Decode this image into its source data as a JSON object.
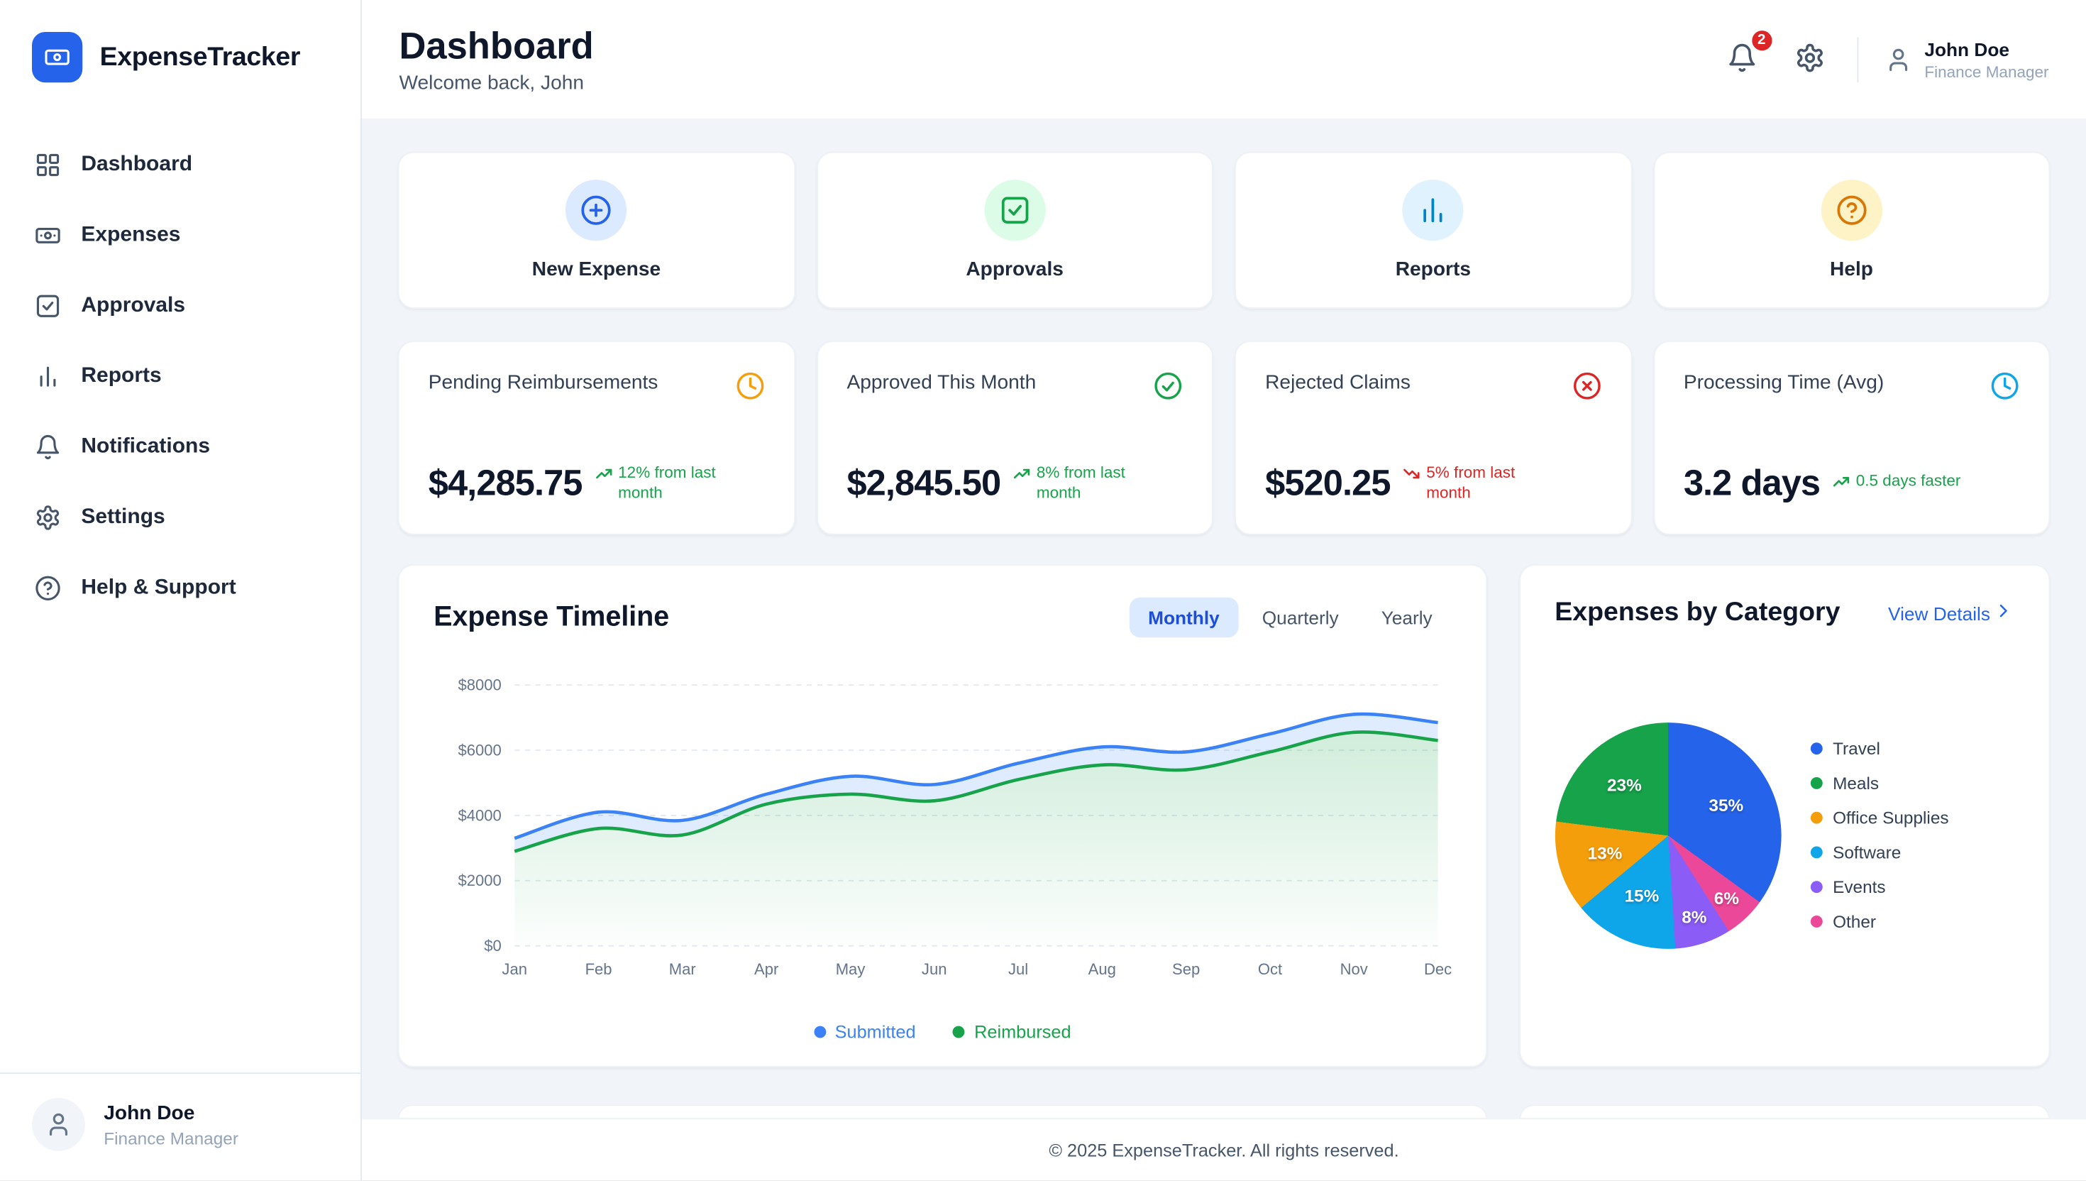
{
  "app": {
    "name": "ExpenseTracker",
    "copyright": "© 2025 ExpenseTracker. All rights reserved."
  },
  "sidebar": {
    "items": [
      {
        "label": "Dashboard",
        "icon": "grid-icon"
      },
      {
        "label": "Expenses",
        "icon": "banknote-icon"
      },
      {
        "label": "Approvals",
        "icon": "check-square-icon"
      },
      {
        "label": "Reports",
        "icon": "bar-chart-icon"
      },
      {
        "label": "Notifications",
        "icon": "bell-icon"
      },
      {
        "label": "Settings",
        "icon": "gear-icon"
      },
      {
        "label": "Help & Support",
        "icon": "help-circle-icon"
      }
    ],
    "user": {
      "name": "John Doe",
      "role": "Finance Manager"
    }
  },
  "header": {
    "title": "Dashboard",
    "subtitle": "Welcome back, John",
    "notification_badge": "2",
    "user": {
      "name": "John Doe",
      "role": "Finance Manager"
    }
  },
  "quick_actions": [
    {
      "label": "New Expense",
      "icon": "plus-circle-icon",
      "accent": "#2563eb"
    },
    {
      "label": "Approvals",
      "icon": "check-square-icon",
      "accent": "#16a34a"
    },
    {
      "label": "Reports",
      "icon": "bar-chart-icon",
      "accent": "#0284c7"
    },
    {
      "label": "Help",
      "icon": "help-circle-icon",
      "accent": "#d97706"
    }
  ],
  "stats": [
    {
      "title": "Pending Reimbursements",
      "value": "$4,285.75",
      "trend": "12% from last month",
      "direction": "up",
      "trend_color": "#16a34a",
      "icon": "clock-icon",
      "icon_color": "#f59e0b"
    },
    {
      "title": "Approved This Month",
      "value": "$2,845.50",
      "trend": "8% from last month",
      "direction": "up",
      "trend_color": "#16a34a",
      "icon": "check-circle-icon",
      "icon_color": "#16a34a"
    },
    {
      "title": "Rejected Claims",
      "value": "$520.25",
      "trend": "5% from last month",
      "direction": "down",
      "trend_color": "#dc2626",
      "icon": "x-circle-icon",
      "icon_color": "#dc2626"
    },
    {
      "title": "Processing Time (Avg)",
      "value": "3.2 days",
      "trend": "0.5 days faster",
      "direction": "up",
      "trend_color": "#16a34a",
      "icon": "clock-icon",
      "icon_color": "#0ea5e9"
    }
  ],
  "timeline_card": {
    "title": "Expense Timeline",
    "tabs": [
      {
        "label": "Monthly",
        "active": true
      },
      {
        "label": "Quarterly",
        "active": false
      },
      {
        "label": "Yearly",
        "active": false
      }
    ]
  },
  "category_card": {
    "title": "Expenses by Category",
    "link_label": "View Details"
  },
  "chart_data": [
    {
      "type": "area",
      "title": "Expense Timeline",
      "x": [
        "Jan",
        "Feb",
        "Mar",
        "Apr",
        "May",
        "Jun",
        "Jul",
        "Aug",
        "Sep",
        "Oct",
        "Nov",
        "Dec"
      ],
      "series": [
        {
          "name": "Submitted",
          "color": "#3b82f6",
          "values": [
            3300,
            4100,
            3850,
            4650,
            5200,
            4950,
            5600,
            6100,
            5950,
            6500,
            7100,
            6850
          ]
        },
        {
          "name": "Reimbursed",
          "color": "#16a34a",
          "values": [
            2900,
            3600,
            3400,
            4350,
            4650,
            4450,
            5100,
            5550,
            5400,
            5950,
            6550,
            6300
          ]
        }
      ],
      "ylim": [
        0,
        8000
      ],
      "yticks": [
        0,
        2000,
        4000,
        6000,
        8000
      ],
      "ytick_labels": [
        "$0",
        "$2000",
        "$4000",
        "$6000",
        "$8000"
      ],
      "grid": true,
      "legend_position": "bottom"
    },
    {
      "type": "pie",
      "title": "Expenses by Category",
      "segments": [
        {
          "label": "Travel",
          "value": 35,
          "color": "#2563eb"
        },
        {
          "label": "Meals",
          "value": 23,
          "color": "#16a34a"
        },
        {
          "label": "Office Supplies",
          "value": 13,
          "color": "#f59e0b"
        },
        {
          "label": "Software",
          "value": 15,
          "color": "#0ea5e9"
        },
        {
          "label": "Events",
          "value": 8,
          "color": "#8b5cf6"
        },
        {
          "label": "Other",
          "value": 6,
          "color": "#ec4899"
        }
      ],
      "draw_order": [
        "Travel",
        "Other",
        "Events",
        "Software",
        "Office Supplies",
        "Meals"
      ],
      "start_angle_deg": 0,
      "clockwise": true,
      "labels": "percent-inside",
      "legend_position": "right"
    }
  ]
}
